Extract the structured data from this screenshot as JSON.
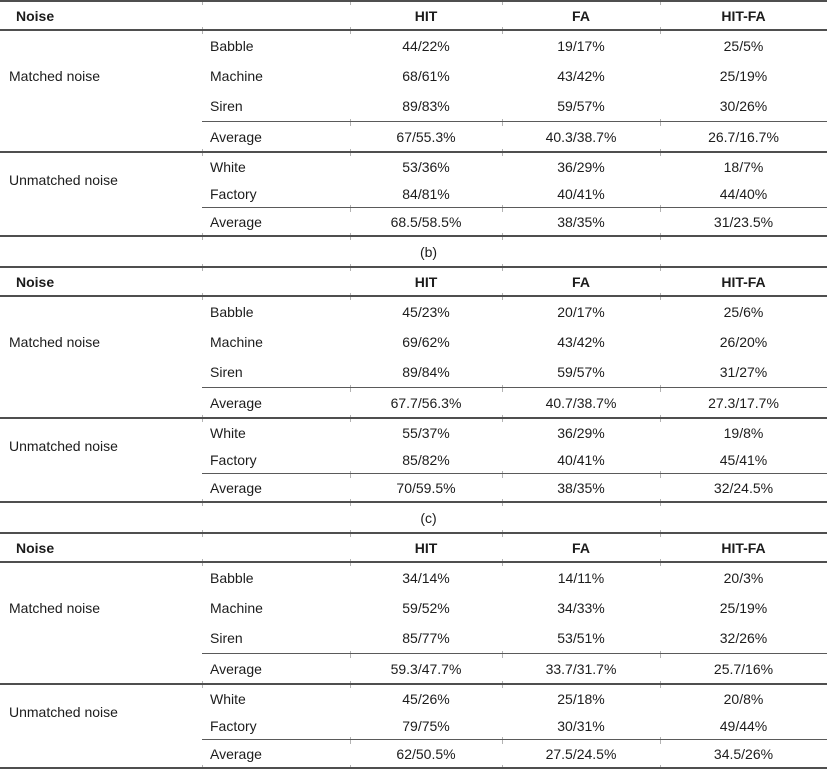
{
  "tables": [
    {
      "caption": null,
      "header": {
        "noise": "Noise",
        "hit": "HIT",
        "fa": "FA",
        "hitfa": "HIT-FA"
      },
      "groups": [
        {
          "label": "Matched noise",
          "rows": [
            {
              "type": "Babble",
              "hit": "44/22%",
              "fa": "19/17%",
              "hitfa": "25/5%"
            },
            {
              "type": "Machine",
              "hit": "68/61%",
              "fa": "43/42%",
              "hitfa": "25/19%"
            },
            {
              "type": "Siren",
              "hit": "89/83%",
              "fa": "59/57%",
              "hitfa": "30/26%"
            }
          ],
          "average": {
            "type": "Average",
            "hit": "67/55.3%",
            "fa": "40.3/38.7%",
            "hitfa": "26.7/16.7%"
          }
        },
        {
          "label": "Unmatched noise",
          "rows": [
            {
              "type": "White",
              "hit": "53/36%",
              "fa": "36/29%",
              "hitfa": "18/7%"
            },
            {
              "type": "Factory",
              "hit": "84/81%",
              "fa": "40/41%",
              "hitfa": "44/40%"
            }
          ],
          "average": {
            "type": "Average",
            "hit": "68.5/58.5%",
            "fa": "38/35%",
            "hitfa": "31/23.5%"
          }
        }
      ]
    },
    {
      "caption": "(b)",
      "header": {
        "noise": "Noise",
        "hit": "HIT",
        "fa": "FA",
        "hitfa": "HIT-FA"
      },
      "groups": [
        {
          "label": "Matched noise",
          "rows": [
            {
              "type": "Babble",
              "hit": "45/23%",
              "fa": "20/17%",
              "hitfa": "25/6%"
            },
            {
              "type": "Machine",
              "hit": "69/62%",
              "fa": "43/42%",
              "hitfa": "26/20%"
            },
            {
              "type": "Siren",
              "hit": "89/84%",
              "fa": "59/57%",
              "hitfa": "31/27%"
            }
          ],
          "average": {
            "type": "Average",
            "hit": "67.7/56.3%",
            "fa": "40.7/38.7%",
            "hitfa": "27.3/17.7%"
          }
        },
        {
          "label": "Unmatched noise",
          "rows": [
            {
              "type": "White",
              "hit": "55/37%",
              "fa": "36/29%",
              "hitfa": "19/8%"
            },
            {
              "type": "Factory",
              "hit": "85/82%",
              "fa": "40/41%",
              "hitfa": "45/41%"
            }
          ],
          "average": {
            "type": "Average",
            "hit": "70/59.5%",
            "fa": "38/35%",
            "hitfa": "32/24.5%"
          }
        }
      ]
    },
    {
      "caption": "(c)",
      "header": {
        "noise": "Noise",
        "hit": "HIT",
        "fa": "FA",
        "hitfa": "HIT-FA"
      },
      "groups": [
        {
          "label": "Matched noise",
          "rows": [
            {
              "type": "Babble",
              "hit": "34/14%",
              "fa": "14/11%",
              "hitfa": "20/3%"
            },
            {
              "type": "Machine",
              "hit": "59/52%",
              "fa": "34/33%",
              "hitfa": "25/19%"
            },
            {
              "type": "Siren",
              "hit": "85/77%",
              "fa": "53/51%",
              "hitfa": "32/26%"
            }
          ],
          "average": {
            "type": "Average",
            "hit": "59.3/47.7%",
            "fa": "33.7/31.7%",
            "hitfa": "25.7/16%"
          }
        },
        {
          "label": "Unmatched noise",
          "rows": [
            {
              "type": "White",
              "hit": "45/26%",
              "fa": "25/18%",
              "hitfa": "20/8%"
            },
            {
              "type": "Factory",
              "hit": "79/75%",
              "fa": "30/31%",
              "hitfa": "49/44%"
            }
          ],
          "average": {
            "type": "Average",
            "hit": "62/50.5%",
            "fa": "27.5/24.5%",
            "hitfa": "34.5/26%"
          }
        }
      ]
    }
  ]
}
